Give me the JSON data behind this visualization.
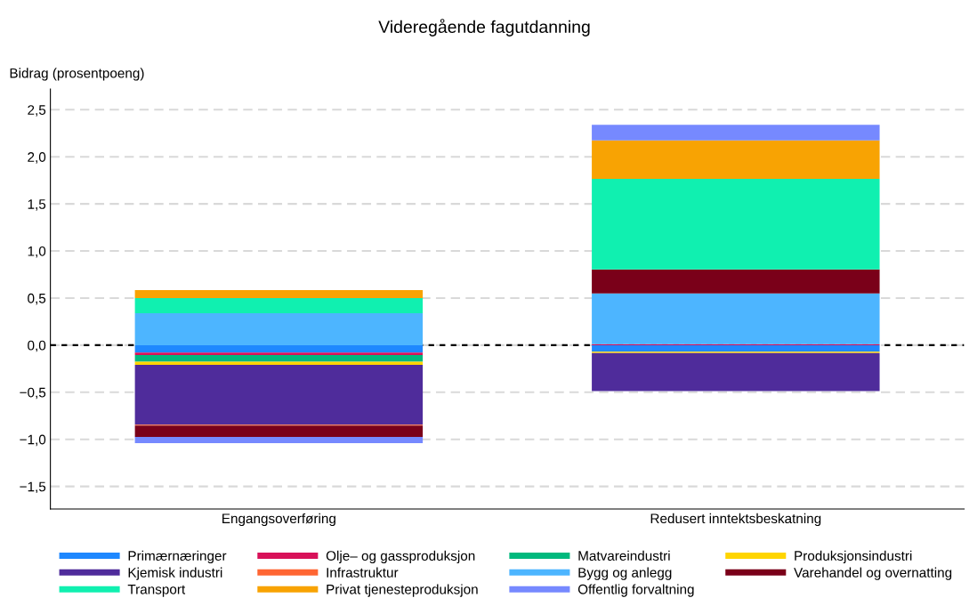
{
  "chart_data": {
    "type": "bar",
    "title": "Videregående fagutdanning",
    "ylabel": "Bidrag (prosentpoeng)",
    "stacked": true,
    "categories": [
      "Engangsoverføring",
      "Redusert inntektsbeskatning"
    ],
    "series": [
      {
        "name": "Primærnæringer",
        "color": "#1e88ff",
        "values": [
          -0.08,
          -0.07
        ]
      },
      {
        "name": "Olje‒ og gassproduksjon",
        "color": "#d81159",
        "values": [
          -0.025,
          0.01
        ]
      },
      {
        "name": "Matvareindustri",
        "color": "#00b97d",
        "values": [
          -0.07,
          0
        ]
      },
      {
        "name": "Produksjonsindustri",
        "color": "#ffd500",
        "values": [
          -0.035,
          -0.013
        ]
      },
      {
        "name": "Kjemisk industri",
        "color": "#4f2c9b",
        "values": [
          -0.635,
          -0.405
        ]
      },
      {
        "name": "Infrastruktur",
        "color": "#ff6633",
        "values": [
          -0.01,
          0
        ]
      },
      {
        "name": "Bygg og anlegg",
        "color": "#4db5ff",
        "values": [
          0.34,
          0.54
        ]
      },
      {
        "name": "Varehandel og overnatting",
        "color": "#7a0019",
        "values": [
          -0.12,
          0.255
        ]
      },
      {
        "name": "Transport",
        "color": "#10f0b0",
        "values": [
          0.16,
          0.96
        ]
      },
      {
        "name": "Privat tjenesteproduksjon",
        "color": "#f8a303",
        "values": [
          0.085,
          0.41
        ]
      },
      {
        "name": "Offentlig forvaltning",
        "color": "#7689ff",
        "values": [
          -0.065,
          0.165
        ]
      }
    ],
    "ylim": [
      -1.74,
      2.72
    ],
    "yticks": [
      {
        "value": -1.5,
        "label": "−1,5"
      },
      {
        "value": -1.0,
        "label": "−1,0"
      },
      {
        "value": -0.5,
        "label": "−0,5"
      },
      {
        "value": 0.0,
        "label": "0,0"
      },
      {
        "value": 0.5,
        "label": "0,5"
      },
      {
        "value": 1.0,
        "label": "1,0"
      },
      {
        "value": 1.5,
        "label": "1,5"
      },
      {
        "value": 2.0,
        "label": "2,0"
      },
      {
        "value": 2.5,
        "label": "2,5"
      }
    ],
    "ref_lines": [
      {
        "axis": "y",
        "value": 0,
        "color": "#000000",
        "line_style": "dashed"
      }
    ],
    "grid": "y",
    "legend": "bottom"
  }
}
